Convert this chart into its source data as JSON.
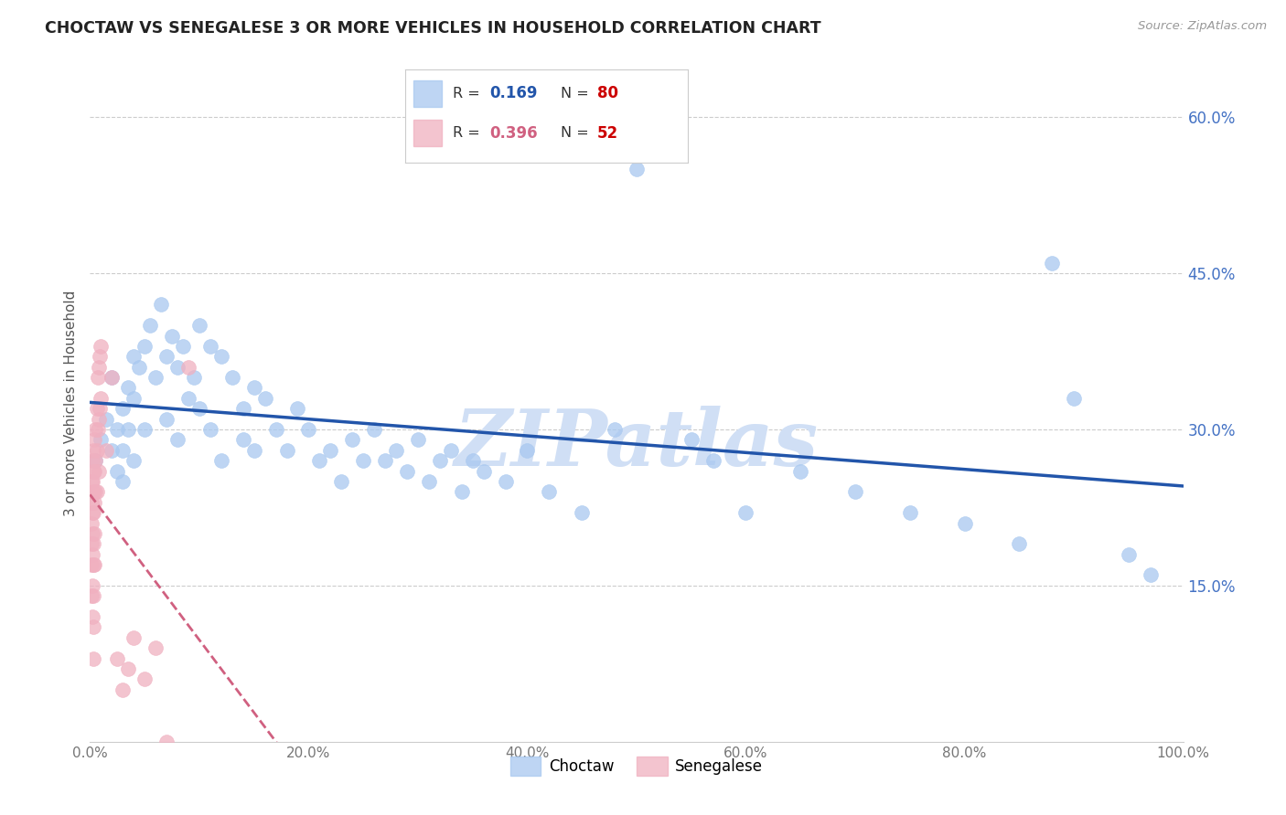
{
  "title": "CHOCTAW VS SENEGALESE 3 OR MORE VEHICLES IN HOUSEHOLD CORRELATION CHART",
  "source": "Source: ZipAtlas.com",
  "ylabel": "3 or more Vehicles in Household",
  "legend_choctaw": "Choctaw",
  "legend_senegalese": "Senegalese",
  "R_choctaw": "0.169",
  "N_choctaw": "80",
  "R_senegalese": "0.396",
  "N_senegalese": "52",
  "xlim": [
    0.0,
    1.0
  ],
  "ylim": [
    0.0,
    0.65
  ],
  "xticks": [
    0.0,
    0.2,
    0.4,
    0.6,
    0.8,
    1.0
  ],
  "xtick_labels": [
    "0.0%",
    "20.0%",
    "40.0%",
    "60.0%",
    "80.0%",
    "100.0%"
  ],
  "yticks_right": [
    0.15,
    0.3,
    0.45,
    0.6
  ],
  "ytick_labels_right": [
    "15.0%",
    "30.0%",
    "45.0%",
    "60.0%"
  ],
  "color_choctaw": "#a8c8f0",
  "color_senegalese": "#f0b0c0",
  "color_trend_choctaw": "#2255aa",
  "color_trend_senegalese": "#d06080",
  "background_color": "#ffffff",
  "watermark": "ZIPatlas",
  "watermark_color": "#d0dff5",
  "choctaw_x": [
    0.005,
    0.01,
    0.015,
    0.02,
    0.02,
    0.025,
    0.025,
    0.03,
    0.03,
    0.03,
    0.035,
    0.035,
    0.04,
    0.04,
    0.04,
    0.045,
    0.05,
    0.05,
    0.055,
    0.06,
    0.065,
    0.07,
    0.07,
    0.075,
    0.08,
    0.08,
    0.085,
    0.09,
    0.095,
    0.1,
    0.1,
    0.11,
    0.11,
    0.12,
    0.12,
    0.13,
    0.14,
    0.14,
    0.15,
    0.15,
    0.16,
    0.17,
    0.18,
    0.19,
    0.2,
    0.21,
    0.22,
    0.23,
    0.24,
    0.25,
    0.26,
    0.27,
    0.28,
    0.29,
    0.3,
    0.31,
    0.32,
    0.33,
    0.34,
    0.35,
    0.36,
    0.38,
    0.4,
    0.42,
    0.45,
    0.48,
    0.5,
    0.53,
    0.55,
    0.57,
    0.6,
    0.65,
    0.7,
    0.75,
    0.8,
    0.85,
    0.88,
    0.9,
    0.95,
    0.97
  ],
  "choctaw_y": [
    0.27,
    0.29,
    0.31,
    0.28,
    0.35,
    0.3,
    0.26,
    0.32,
    0.28,
    0.25,
    0.34,
    0.3,
    0.37,
    0.33,
    0.27,
    0.36,
    0.38,
    0.3,
    0.4,
    0.35,
    0.42,
    0.37,
    0.31,
    0.39,
    0.36,
    0.29,
    0.38,
    0.33,
    0.35,
    0.4,
    0.32,
    0.38,
    0.3,
    0.37,
    0.27,
    0.35,
    0.32,
    0.29,
    0.34,
    0.28,
    0.33,
    0.3,
    0.28,
    0.32,
    0.3,
    0.27,
    0.28,
    0.25,
    0.29,
    0.27,
    0.3,
    0.27,
    0.28,
    0.26,
    0.29,
    0.25,
    0.27,
    0.28,
    0.24,
    0.27,
    0.26,
    0.25,
    0.28,
    0.24,
    0.22,
    0.3,
    0.55,
    0.57,
    0.29,
    0.27,
    0.22,
    0.26,
    0.24,
    0.22,
    0.21,
    0.19,
    0.46,
    0.33,
    0.18,
    0.16
  ],
  "senegalese_x": [
    0.001,
    0.001,
    0.001,
    0.001,
    0.001,
    0.001,
    0.002,
    0.002,
    0.002,
    0.002,
    0.002,
    0.002,
    0.002,
    0.003,
    0.003,
    0.003,
    0.003,
    0.003,
    0.003,
    0.003,
    0.003,
    0.003,
    0.004,
    0.004,
    0.004,
    0.004,
    0.004,
    0.005,
    0.005,
    0.005,
    0.006,
    0.006,
    0.006,
    0.007,
    0.007,
    0.008,
    0.008,
    0.008,
    0.009,
    0.009,
    0.01,
    0.01,
    0.015,
    0.02,
    0.025,
    0.03,
    0.035,
    0.04,
    0.05,
    0.06,
    0.07,
    0.09
  ],
  "senegalese_y": [
    0.25,
    0.23,
    0.21,
    0.19,
    0.17,
    0.14,
    0.27,
    0.25,
    0.22,
    0.2,
    0.18,
    0.15,
    0.12,
    0.28,
    0.26,
    0.24,
    0.22,
    0.19,
    0.17,
    0.14,
    0.11,
    0.08,
    0.29,
    0.26,
    0.23,
    0.2,
    0.17,
    0.3,
    0.27,
    0.24,
    0.32,
    0.28,
    0.24,
    0.35,
    0.3,
    0.36,
    0.31,
    0.26,
    0.37,
    0.32,
    0.38,
    0.33,
    0.28,
    0.35,
    0.08,
    0.05,
    0.07,
    0.1,
    0.06,
    0.09,
    0.0,
    0.36
  ]
}
